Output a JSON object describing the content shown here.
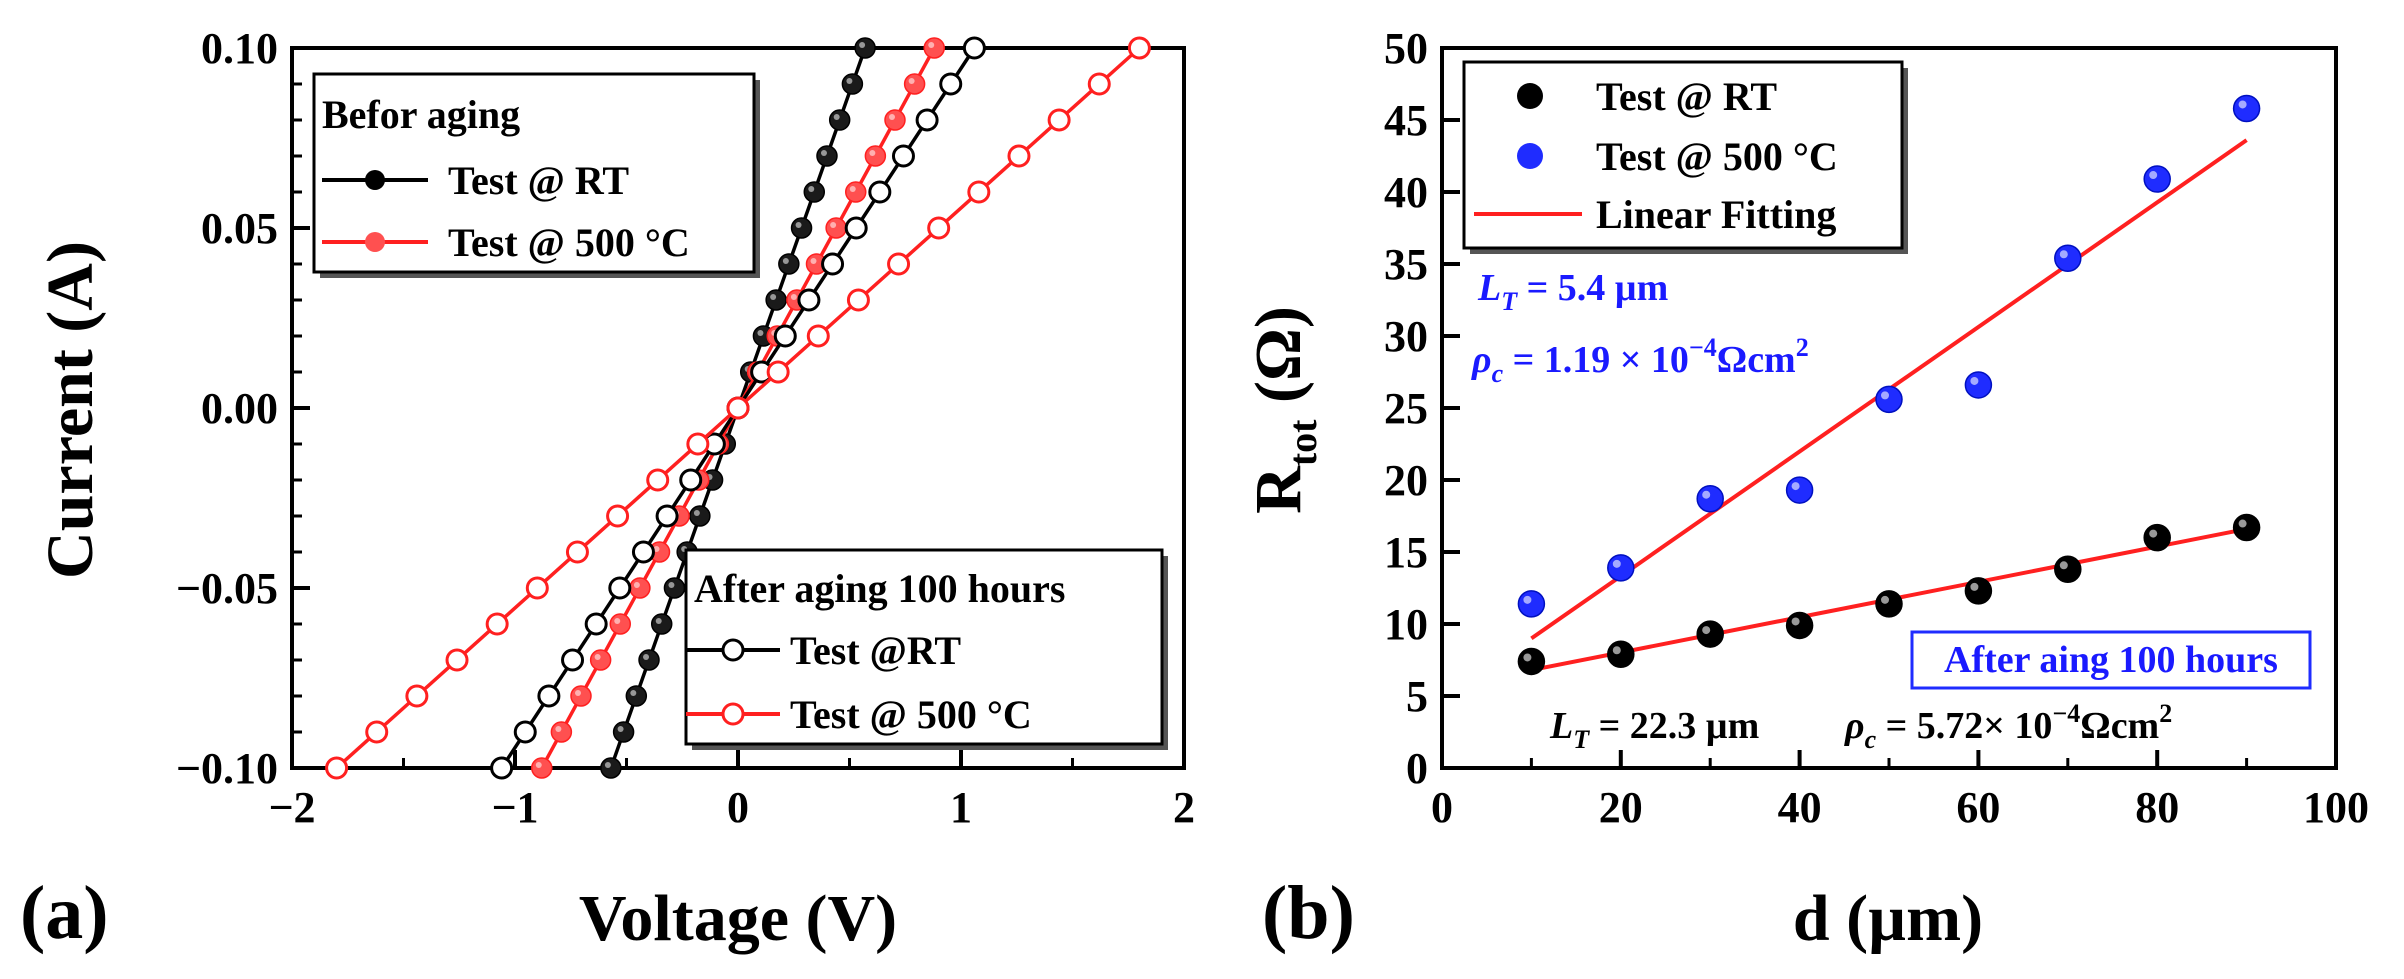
{
  "chart_data": [
    {
      "type": "line",
      "panel_label": "(a)",
      "xlabel": "Voltage (V)",
      "ylabel": "Current (A)",
      "xlim": [
        -2,
        2
      ],
      "ylim": [
        -0.1,
        0.1
      ],
      "xticks": [
        "−2",
        "−1",
        "0",
        "1",
        "2"
      ],
      "yticks": [
        "−0.10",
        "−0.05",
        "0.00",
        "0.05",
        "0.10"
      ],
      "legends": [
        {
          "title": "Befor aging",
          "entries": [
            "Test @ RT",
            "Test @ 500 °C"
          ]
        },
        {
          "title": "After aging 100 hours",
          "entries": [
            "Test @RT",
            "Test @ 500 °C"
          ]
        }
      ],
      "series": [
        {
          "name": "Test @ RT",
          "group": "Befor aging",
          "color": "#000000",
          "marker": "filled",
          "resistance_ohm": 5.7,
          "v_range": [
            -0.57,
            0.57
          ]
        },
        {
          "name": "Test @ 500 °C",
          "group": "Befor aging",
          "color": "#ff2020",
          "marker": "filled",
          "resistance_ohm": 8.8,
          "v_range": [
            -0.88,
            0.88
          ]
        },
        {
          "name": "Test @RT",
          "group": "After aging 100 hours",
          "color": "#000000",
          "marker": "open",
          "resistance_ohm": 10.6,
          "v_range": [
            -1.06,
            1.06
          ]
        },
        {
          "name": "Test @ 500 °C",
          "group": "After aging 100 hours",
          "color": "#ff2020",
          "marker": "open",
          "resistance_ohm": 18.0,
          "v_range": [
            -1.8,
            1.8
          ]
        }
      ]
    },
    {
      "type": "scatter",
      "panel_label": "(b)",
      "xlabel": "d (µm)",
      "ylabel_main": "R",
      "ylabel_sub": "tot",
      "ylabel_unit": " (Ω)",
      "xlim": [
        0,
        100
      ],
      "ylim": [
        0,
        50
      ],
      "xticks": [
        "0",
        "20",
        "40",
        "60",
        "80",
        "100"
      ],
      "yticks": [
        "0",
        "5",
        "10",
        "15",
        "20",
        "25",
        "30",
        "35",
        "40",
        "45",
        "50"
      ],
      "legend": [
        "Test @ RT",
        "Test @ 500 °C",
        "Linear Fitting"
      ],
      "x": [
        10,
        20,
        30,
        40,
        50,
        60,
        70,
        80,
        90
      ],
      "series": [
        {
          "name": "Test @ RT",
          "color": "#000000",
          "values": [
            7.4,
            7.9,
            9.3,
            9.9,
            11.4,
            12.3,
            13.8,
            16.0,
            16.7
          ],
          "fit": [
            6.8,
            16.6
          ]
        },
        {
          "name": "Test @ 500 °C",
          "color": "#1f2cff",
          "values": [
            11.4,
            13.9,
            18.7,
            19.3,
            25.6,
            26.6,
            35.4,
            40.9,
            45.8
          ],
          "fit": [
            9.0,
            43.6
          ]
        }
      ],
      "fit_color": "#ff2020",
      "annotations": {
        "lt_high": {
          "sym": "L",
          "sub": "T",
          "text": " = 5.4 µm"
        },
        "rho_high": {
          "sym": "ρ",
          "sub": "c",
          "text": " = 1.19 × 10",
          "exp": "−4",
          "unit": "Ωcm",
          "unit_exp": "2"
        },
        "boxed": "After aing 100 hours",
        "lt_low": {
          "sym": "L",
          "sub": "T",
          "text": " = 22.3 µm"
        },
        "rho_low": {
          "sym": "ρ",
          "sub": "c",
          "text": " = 5.72× 10",
          "exp": "−4",
          "unit": "Ωcm",
          "unit_exp": "2"
        }
      }
    }
  ]
}
